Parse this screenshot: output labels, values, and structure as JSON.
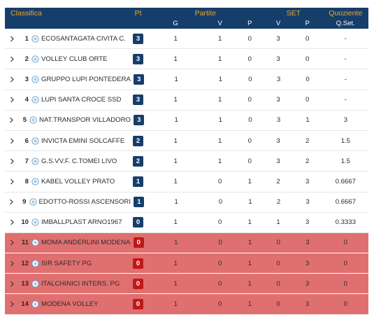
{
  "header": {
    "classifica": "Classifica",
    "pt": "Pt",
    "partite": "Partite",
    "set": "SET",
    "quoziente": "Quoziente",
    "sub_g": "G",
    "sub_v": "V",
    "sub_p": "P",
    "sub_set_v": "V",
    "sub_set_p": "P",
    "sub_qset": "Q.Set."
  },
  "colors": {
    "header_bg": "#163e6a",
    "header_accent": "#f3a623",
    "relegation_bg": "#e07070",
    "relegation_badge": "#c01818"
  },
  "teams": [
    {
      "pos": "1",
      "name": "ECOSANTAGATA CIVITA C.",
      "pt": "3",
      "g": "1",
      "v": "1",
      "p": "0",
      "sv": "3",
      "sp": "0",
      "q": "-",
      "zone": "normal"
    },
    {
      "pos": "2",
      "name": "VOLLEY CLUB ORTE",
      "pt": "3",
      "g": "1",
      "v": "1",
      "p": "0",
      "sv": "3",
      "sp": "0",
      "q": "-",
      "zone": "normal"
    },
    {
      "pos": "3",
      "name": "GRUPPO LUPI PONTEDERA",
      "pt": "3",
      "g": "1",
      "v": "1",
      "p": "0",
      "sv": "3",
      "sp": "0",
      "q": "-",
      "zone": "normal"
    },
    {
      "pos": "4",
      "name": "LUPI SANTA CROCE SSD",
      "pt": "3",
      "g": "1",
      "v": "1",
      "p": "0",
      "sv": "3",
      "sp": "0",
      "q": "-",
      "zone": "normal"
    },
    {
      "pos": "5",
      "name": "NAT.TRANSPOR VILLADORO",
      "pt": "3",
      "g": "1",
      "v": "1",
      "p": "0",
      "sv": "3",
      "sp": "1",
      "q": "3",
      "zone": "normal"
    },
    {
      "pos": "6",
      "name": "INVICTA EMINI SOLCAFFE",
      "pt": "2",
      "g": "1",
      "v": "1",
      "p": "0",
      "sv": "3",
      "sp": "2",
      "q": "1.5",
      "zone": "normal"
    },
    {
      "pos": "7",
      "name": "G.S.VV.F. C.TOMEI LIVO",
      "pt": "2",
      "g": "1",
      "v": "1",
      "p": "0",
      "sv": "3",
      "sp": "2",
      "q": "1.5",
      "zone": "normal"
    },
    {
      "pos": "8",
      "name": "KABEL VOLLEY PRATO",
      "pt": "1",
      "g": "1",
      "v": "0",
      "p": "1",
      "sv": "2",
      "sp": "3",
      "q": "0.6667",
      "zone": "normal"
    },
    {
      "pos": "9",
      "name": "EDOTTO-ROSSI ASCENSORI",
      "pt": "1",
      "g": "1",
      "v": "0",
      "p": "1",
      "sv": "2",
      "sp": "3",
      "q": "0.6667",
      "zone": "normal"
    },
    {
      "pos": "10",
      "name": "IMBALLPLAST ARNO1967",
      "pt": "0",
      "g": "1",
      "v": "0",
      "p": "1",
      "sv": "1",
      "sp": "3",
      "q": "0.3333",
      "zone": "normal"
    },
    {
      "pos": "11",
      "name": "MOMA ANDERLINI MODENA",
      "pt": "0",
      "g": "1",
      "v": "0",
      "p": "1",
      "sv": "0",
      "sp": "3",
      "q": "0",
      "zone": "relegated"
    },
    {
      "pos": "12",
      "name": "SIR SAFETY PG",
      "pt": "0",
      "g": "1",
      "v": "0",
      "p": "1",
      "sv": "0",
      "sp": "3",
      "q": "0",
      "zone": "relegated"
    },
    {
      "pos": "13",
      "name": "ITALCHINICI INTERS. PG",
      "pt": "0",
      "g": "1",
      "v": "0",
      "p": "1",
      "sv": "0",
      "sp": "3",
      "q": "0",
      "zone": "relegated"
    },
    {
      "pos": "14",
      "name": "MODENA VOLLEY",
      "pt": "0",
      "g": "1",
      "v": "0",
      "p": "1",
      "sv": "0",
      "sp": "3",
      "q": "0",
      "zone": "relegated"
    }
  ]
}
